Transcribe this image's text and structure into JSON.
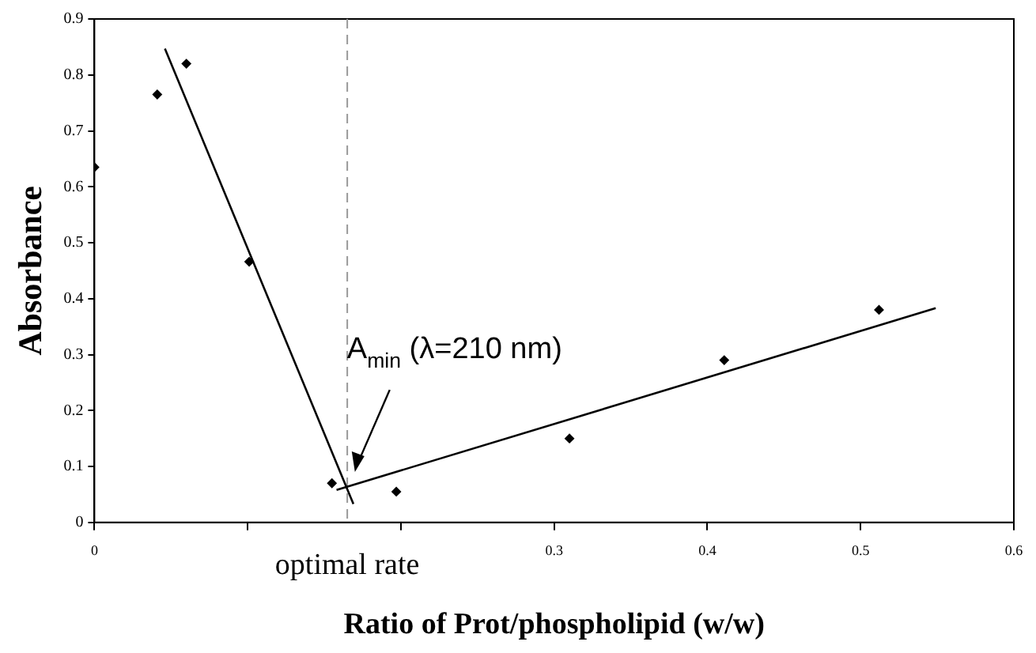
{
  "chart_data": {
    "type": "scatter",
    "xlabel": "Ratio of Prot/phospholipid (w/w)",
    "ylabel": "Absorbance",
    "xlim": [
      0,
      0.6
    ],
    "xticks": [
      0,
      {
        "value": 0.1,
        "label": null
      },
      {
        "value": 0.2,
        "label": null
      },
      0.3,
      0.4,
      0.5,
      0.6
    ],
    "ylim": [
      0,
      0.9
    ],
    "yticks": [
      0,
      0.1,
      0.2,
      0.3,
      0.4,
      0.5,
      0.6,
      0.7,
      0.8,
      0.9
    ],
    "grid": false,
    "legend": false,
    "marker": "diamond",
    "series": [
      {
        "type": "scatter",
        "color": "#000000",
        "x": [
          0,
          0.041,
          0.06,
          0.101,
          0.155,
          0.197,
          0.31,
          0.411,
          0.512
        ],
        "values": [
          0.635,
          0.765,
          0.82,
          0.466,
          0.07,
          0.055,
          0.15,
          0.29,
          0.38
        ]
      },
      {
        "type": "line",
        "color": "#000000",
        "marker": "none",
        "x": [
          0.046,
          0.169
        ],
        "values": [
          0.847,
          0.033
        ]
      },
      {
        "type": "line",
        "color": "#000000",
        "marker": "none",
        "x": [
          0.158,
          0.549
        ],
        "values": [
          0.058,
          0.383
        ]
      }
    ],
    "ref_lines": [
      {
        "axis": "x",
        "value": 0.165,
        "label": "optimal rate",
        "line_style": "dashed",
        "color": "#999999"
      }
    ],
    "annotations": [
      {
        "text": "A$_{min}$ (λ=210 nm)",
        "x": 0.17,
        "y": 0.09
      }
    ]
  }
}
